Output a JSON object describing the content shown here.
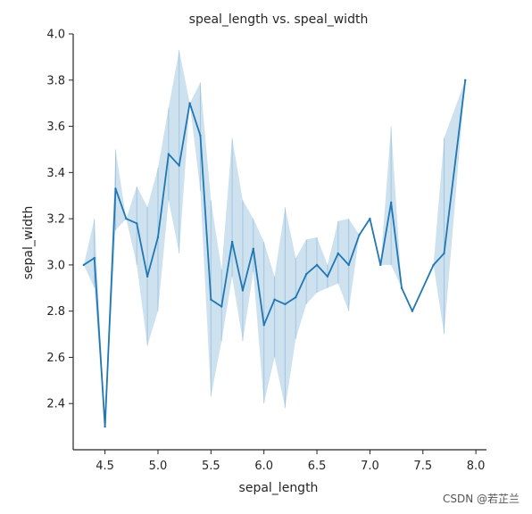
{
  "chart_data": {
    "type": "line",
    "title": "speal_length vs. speal_width",
    "xlabel": "sepal_length",
    "ylabel": "sepal_width",
    "xlim": [
      4.2,
      8.1
    ],
    "ylim": [
      2.2,
      4.0
    ],
    "xticks": [
      4.5,
      5.0,
      5.5,
      6.0,
      6.5,
      7.0,
      7.5,
      8.0
    ],
    "xtick_labels": [
      "4.5",
      "5.0",
      "5.5",
      "6.0",
      "6.5",
      "7.0",
      "7.5",
      "8.0"
    ],
    "yticks": [
      2.4,
      2.6,
      2.8,
      3.0,
      3.2,
      3.4,
      3.6,
      3.8,
      4.0
    ],
    "ytick_labels": [
      "2.4",
      "2.6",
      "2.8",
      "3.0",
      "3.2",
      "3.4",
      "3.6",
      "3.8",
      "4.0"
    ],
    "grid": false,
    "line_color": "#1f77b4",
    "band_color": "#1f77b4",
    "series": [
      {
        "x": [
          4.3,
          4.4,
          4.5,
          4.6,
          4.7,
          4.8,
          4.9,
          5.0,
          5.1,
          5.2,
          5.3,
          5.4,
          5.5,
          5.6,
          5.7,
          5.8,
          5.9,
          6.0,
          6.1,
          6.2,
          6.3,
          6.4,
          6.5,
          6.6,
          6.7,
          6.8,
          6.9,
          7.0,
          7.1,
          7.2,
          7.3,
          7.4,
          7.6,
          7.7,
          7.9
        ],
        "y": [
          3.0,
          3.03,
          2.3,
          3.33,
          3.2,
          3.18,
          2.95,
          3.12,
          3.48,
          3.43,
          3.7,
          3.56,
          2.85,
          2.82,
          3.1,
          2.89,
          3.07,
          2.74,
          2.85,
          2.83,
          2.86,
          2.96,
          3.0,
          2.95,
          3.05,
          3.0,
          3.13,
          3.2,
          3.0,
          3.27,
          2.9,
          2.8,
          3.0,
          3.05,
          3.8
        ],
        "ci_low": [
          3.0,
          2.9,
          2.3,
          3.15,
          3.2,
          3.0,
          2.65,
          2.8,
          3.28,
          3.05,
          3.7,
          3.32,
          2.43,
          2.67,
          2.95,
          2.67,
          2.97,
          2.4,
          2.6,
          2.38,
          2.68,
          2.83,
          2.88,
          2.9,
          2.92,
          2.8,
          3.13,
          3.2,
          3.0,
          3.0,
          2.9,
          2.8,
          3.0,
          2.7,
          3.8
        ],
        "ci_high": [
          3.0,
          3.2,
          2.3,
          3.5,
          3.2,
          3.34,
          3.25,
          3.42,
          3.68,
          3.93,
          3.7,
          3.79,
          3.28,
          2.98,
          3.55,
          3.28,
          3.2,
          3.1,
          2.95,
          3.25,
          3.03,
          3.11,
          3.12,
          3.0,
          3.19,
          3.2,
          3.13,
          3.2,
          3.0,
          3.6,
          2.9,
          2.8,
          3.0,
          3.55,
          3.8
        ]
      }
    ]
  },
  "watermark": "CSDN @若芷兰"
}
